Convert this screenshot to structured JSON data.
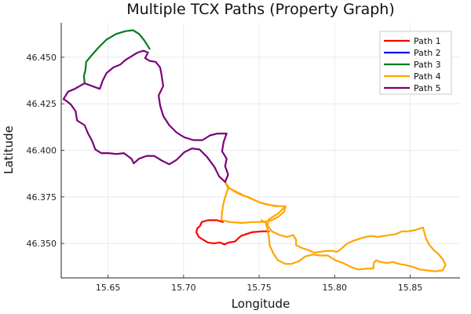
{
  "chart_data": {
    "type": "line",
    "title": "Multiple TCX Paths (Property Graph)",
    "xlabel": "Longitude",
    "ylabel": "Latitude",
    "xlim": [
      15.619,
      15.883
    ],
    "ylim": [
      46.3315,
      46.4685
    ],
    "xticks": [
      15.65,
      15.7,
      15.75,
      15.8,
      15.85
    ],
    "xtick_labels": [
      "15.65",
      "15.70",
      "15.75",
      "15.80",
      "15.85"
    ],
    "yticks": [
      46.35,
      46.375,
      46.4,
      46.425,
      46.45
    ],
    "ytick_labels": [
      "46.350",
      "46.375",
      "46.400",
      "46.425",
      "46.450"
    ],
    "grid": true,
    "legend_position": "top-right",
    "series": [
      {
        "name": "Path 1",
        "color": "#ff0000",
        "points": [
          [
            15.7565,
            46.3565
          ],
          [
            15.752,
            46.3565
          ],
          [
            15.745,
            46.356
          ],
          [
            15.738,
            46.354
          ],
          [
            15.734,
            46.351
          ],
          [
            15.73,
            46.3505
          ],
          [
            15.727,
            46.3495
          ],
          [
            15.724,
            46.3505
          ],
          [
            15.72,
            46.35
          ],
          [
            15.716,
            46.3505
          ],
          [
            15.713,
            46.352
          ],
          [
            15.71,
            46.3535
          ],
          [
            15.7085,
            46.356
          ],
          [
            15.709,
            46.358
          ],
          [
            15.711,
            46.3595
          ],
          [
            15.712,
            46.3615
          ],
          [
            15.716,
            46.3625
          ],
          [
            15.722,
            46.3625
          ],
          [
            15.726,
            46.3615
          ]
        ]
      },
      {
        "name": "Path 2",
        "color": "#0000ff",
        "points": []
      },
      {
        "name": "Path 3",
        "color": "#007d20",
        "points": [
          [
            15.6345,
            46.436
          ],
          [
            15.634,
            46.44
          ],
          [
            15.635,
            46.443
          ],
          [
            15.6355,
            46.4475
          ],
          [
            15.638,
            46.45
          ],
          [
            15.6435,
            46.455
          ],
          [
            15.649,
            46.4595
          ],
          [
            15.6555,
            46.4625
          ],
          [
            15.6615,
            46.464
          ],
          [
            15.6665,
            46.4645
          ],
          [
            15.6705,
            46.4625
          ],
          [
            15.674,
            46.459
          ],
          [
            15.6775,
            46.4545
          ]
        ]
      },
      {
        "name": "Path 4",
        "color": "#ffa500",
        "points": [
          [
            15.7275,
            46.383
          ],
          [
            15.7305,
            46.3795
          ],
          [
            15.7345,
            46.3775
          ],
          [
            15.7385,
            46.376
          ],
          [
            15.7425,
            46.375
          ],
          [
            15.7465,
            46.3735
          ],
          [
            15.7505,
            46.372
          ],
          [
            15.7545,
            46.371
          ],
          [
            15.7585,
            46.3705
          ],
          [
            15.7635,
            46.37
          ],
          [
            15.7675,
            46.37
          ],
          [
            15.7665,
            46.367
          ],
          [
            15.763,
            46.3645
          ],
          [
            15.7585,
            46.3625
          ],
          [
            15.7525,
            46.3615
          ],
          [
            15.7455,
            46.3615
          ],
          [
            15.7385,
            46.361
          ],
          [
            15.7305,
            46.3615
          ],
          [
            15.725,
            46.3625
          ],
          [
            15.7255,
            46.367
          ],
          [
            15.7265,
            46.372
          ],
          [
            15.728,
            46.376
          ],
          [
            15.7295,
            46.3795
          ],
          [
            15.7275,
            46.383
          ],
          [
            15.7305,
            46.3795
          ],
          [
            15.7405,
            46.3755
          ],
          [
            15.7505,
            46.372
          ],
          [
            15.7605,
            46.37
          ],
          [
            15.7675,
            46.37
          ],
          [
            15.7625,
            46.366
          ],
          [
            15.7565,
            46.363
          ],
          [
            15.7555,
            46.3595
          ],
          [
            15.7585,
            46.3565
          ],
          [
            15.7635,
            46.3545
          ],
          [
            15.7685,
            46.3535
          ],
          [
            15.7725,
            46.3545
          ],
          [
            15.7745,
            46.352
          ],
          [
            15.7745,
            46.349
          ],
          [
            15.7785,
            46.3475
          ],
          [
            15.7825,
            46.3465
          ],
          [
            15.7865,
            46.345
          ],
          [
            15.7905,
            46.3455
          ],
          [
            15.7945,
            46.346
          ],
          [
            15.7985,
            46.346
          ],
          [
            15.8015,
            46.3455
          ],
          [
            15.8035,
            46.3465
          ],
          [
            15.8055,
            46.348
          ],
          [
            15.8085,
            46.35
          ],
          [
            15.8125,
            46.3515
          ],
          [
            15.8165,
            46.3525
          ],
          [
            15.8205,
            46.3535
          ],
          [
            15.8245,
            46.354
          ],
          [
            15.8285,
            46.3535
          ],
          [
            15.8325,
            46.354
          ],
          [
            15.8365,
            46.3545
          ],
          [
            15.8405,
            46.355
          ],
          [
            15.8445,
            46.3565
          ],
          [
            15.8485,
            46.3565
          ],
          [
            15.8525,
            46.357
          ],
          [
            15.8565,
            46.358
          ],
          [
            15.8585,
            46.3585
          ],
          [
            15.8595,
            46.3555
          ],
          [
            15.8605,
            46.3525
          ],
          [
            15.8625,
            46.3495
          ],
          [
            15.8655,
            46.3465
          ],
          [
            15.8685,
            46.3445
          ],
          [
            15.8715,
            46.3415
          ],
          [
            15.8735,
            46.3385
          ],
          [
            15.8715,
            46.3355
          ],
          [
            15.8665,
            46.335
          ],
          [
            15.8615,
            46.3355
          ],
          [
            15.8565,
            46.336
          ],
          [
            15.8515,
            46.3375
          ],
          [
            15.8465,
            46.3385
          ],
          [
            15.8425,
            46.339
          ],
          [
            15.8385,
            46.34
          ],
          [
            15.8345,
            46.3395
          ],
          [
            15.8305,
            46.34
          ],
          [
            15.8275,
            46.341
          ],
          [
            15.826,
            46.3395
          ],
          [
            15.8255,
            46.3365
          ],
          [
            15.8215,
            46.3365
          ],
          [
            15.8155,
            46.336
          ],
          [
            15.8105,
            46.3375
          ],
          [
            15.8055,
            46.3395
          ],
          [
            15.8005,
            46.341
          ],
          [
            15.7955,
            46.3435
          ],
          [
            15.7905,
            46.3435
          ],
          [
            15.7855,
            46.344
          ],
          [
            15.7805,
            46.343
          ],
          [
            15.7765,
            46.3405
          ],
          [
            15.7715,
            46.339
          ],
          [
            15.7675,
            46.339
          ],
          [
            15.7625,
            46.341
          ],
          [
            15.7595,
            46.3445
          ],
          [
            15.757,
            46.349
          ],
          [
            15.7565,
            46.3535
          ],
          [
            15.7555,
            46.3575
          ],
          [
            15.7545,
            46.361
          ],
          [
            15.7515,
            46.3625
          ]
        ]
      },
      {
        "name": "Path 5",
        "color": "#7b007b",
        "points": [
          [
            15.6345,
            46.436
          ],
          [
            15.6395,
            46.4345
          ],
          [
            15.6445,
            46.433
          ],
          [
            15.6465,
            46.4375
          ],
          [
            15.649,
            46.4415
          ],
          [
            15.6535,
            46.4445
          ],
          [
            15.658,
            46.446
          ],
          [
            15.6615,
            46.4485
          ],
          [
            15.6655,
            46.4505
          ],
          [
            15.6695,
            46.4525
          ],
          [
            15.6735,
            46.4535
          ],
          [
            15.6765,
            46.4525
          ],
          [
            15.6745,
            46.4495
          ],
          [
            15.6775,
            46.448
          ],
          [
            15.6815,
            46.4475
          ],
          [
            15.6845,
            46.4445
          ],
          [
            15.6855,
            46.44
          ],
          [
            15.6865,
            46.4345
          ],
          [
            15.6835,
            46.4295
          ],
          [
            15.6845,
            46.424
          ],
          [
            15.6865,
            46.4185
          ],
          [
            15.6905,
            46.4135
          ],
          [
            15.6955,
            46.4095
          ],
          [
            15.7005,
            46.407
          ],
          [
            15.7065,
            46.4055
          ],
          [
            15.7125,
            46.4055
          ],
          [
            15.7175,
            46.408
          ],
          [
            15.7225,
            46.409
          ],
          [
            15.7285,
            46.409
          ],
          [
            15.7265,
            46.4045
          ],
          [
            15.7255,
            46.3995
          ],
          [
            15.7285,
            46.3955
          ],
          [
            15.7275,
            46.3915
          ],
          [
            15.7295,
            46.387
          ],
          [
            15.7275,
            46.383
          ],
          [
            15.7235,
            46.386
          ],
          [
            15.7205,
            46.391
          ],
          [
            15.7155,
            46.3965
          ],
          [
            15.7105,
            46.4005
          ],
          [
            15.7055,
            46.401
          ],
          [
            15.7005,
            46.399
          ],
          [
            15.6955,
            46.395
          ],
          [
            15.6905,
            46.3925
          ],
          [
            15.6855,
            46.3945
          ],
          [
            15.6805,
            46.397
          ],
          [
            15.6755,
            46.397
          ],
          [
            15.6705,
            46.3955
          ],
          [
            15.667,
            46.393
          ],
          [
            15.6655,
            46.3955
          ],
          [
            15.6605,
            46.3985
          ],
          [
            15.6555,
            46.398
          ],
          [
            15.6505,
            46.3985
          ],
          [
            15.6455,
            46.3985
          ],
          [
            15.6415,
            46.4005
          ],
          [
            15.6395,
            46.405
          ],
          [
            15.6365,
            46.4095
          ],
          [
            15.6345,
            46.4135
          ],
          [
            15.6295,
            46.416
          ],
          [
            15.6285,
            46.421
          ],
          [
            15.6255,
            46.4245
          ],
          [
            15.6225,
            46.4265
          ],
          [
            15.6205,
            46.4275
          ],
          [
            15.6235,
            46.4315
          ],
          [
            15.628,
            46.433
          ],
          [
            15.6345,
            46.436
          ]
        ]
      }
    ]
  }
}
